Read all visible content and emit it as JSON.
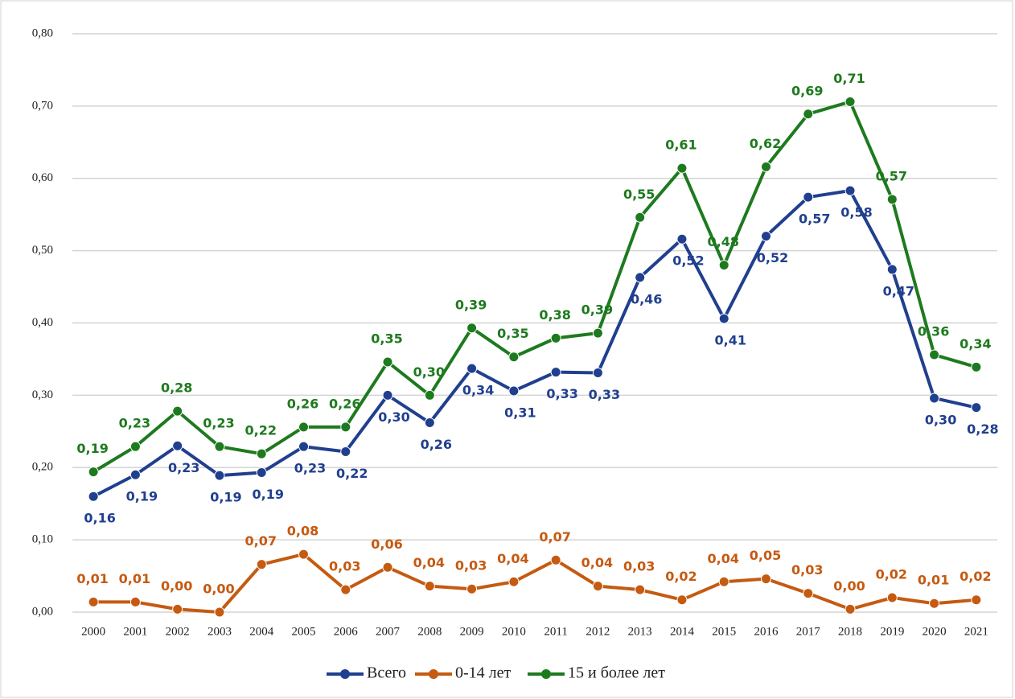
{
  "chart_data": {
    "type": "line",
    "categories": [
      "2000",
      "2001",
      "2002",
      "2003",
      "2004",
      "2005",
      "2006",
      "2007",
      "2008",
      "2009",
      "2010",
      "2011",
      "2012",
      "2013",
      "2014",
      "2015",
      "2016",
      "2017",
      "2018",
      "2019",
      "2020",
      "2021"
    ],
    "ylim": [
      0,
      0.8
    ],
    "yticks": [
      {
        "value": 0,
        "label": "0,00"
      },
      {
        "value": 0.1,
        "label": "0,10"
      },
      {
        "value": 0.2,
        "label": "0,20"
      },
      {
        "value": 0.3,
        "label": "0,30"
      },
      {
        "value": 0.4,
        "label": "0,40"
      },
      {
        "value": 0.5,
        "label": "0,50"
      },
      {
        "value": 0.6,
        "label": "0,60"
      },
      {
        "value": 0.7,
        "label": "0,70"
      },
      {
        "value": 0.8,
        "label": "0,80"
      }
    ],
    "grid": true,
    "legend": "bottom",
    "series": [
      {
        "name": "Всего",
        "color": "#203f8f",
        "values": [
          0.16,
          0.19,
          0.23,
          0.189,
          0.193,
          0.229,
          0.222,
          0.3,
          0.262,
          0.337,
          0.306,
          0.332,
          0.331,
          0.463,
          0.516,
          0.406,
          0.52,
          0.574,
          0.583,
          0.474,
          0.296,
          0.283
        ],
        "value_labels": [
          "0,16",
          "0,19",
          "0,23",
          "0,19",
          "0,19",
          "0,23",
          "0,22",
          "0,30",
          "0,26",
          "0,34",
          "0,31",
          "0,33",
          "0,33",
          "0,46",
          "0,52",
          "0,41",
          "0,52",
          "0,57",
          "0,58",
          "0,47",
          "0,30",
          "0,28"
        ]
      },
      {
        "name": "0-14 лет",
        "color": "#c55a11",
        "values": [
          0.014,
          0.014,
          0.004,
          0.0,
          0.066,
          0.08,
          0.031,
          0.062,
          0.036,
          0.032,
          0.042,
          0.072,
          0.036,
          0.031,
          0.017,
          0.042,
          0.046,
          0.026,
          0.004,
          0.02,
          0.012,
          0.017
        ],
        "value_labels": [
          "0,01",
          "0,01",
          "0,00",
          "0,00",
          "0,07",
          "0,08",
          "0,03",
          "0,06",
          "0,04",
          "0,03",
          "0,04",
          "0,07",
          "0,04",
          "0,03",
          "0,02",
          "0,04",
          "0,05",
          "0,03",
          "0,00",
          "0,02",
          "0,01",
          "0,02"
        ]
      },
      {
        "name": "15 и более лет",
        "color": "#1e7a1e",
        "values": [
          0.194,
          0.229,
          0.278,
          0.229,
          0.219,
          0.256,
          0.256,
          0.346,
          0.3,
          0.393,
          0.353,
          0.379,
          0.386,
          0.546,
          0.614,
          0.48,
          0.616,
          0.689,
          0.706,
          0.571,
          0.356,
          0.339
        ],
        "value_labels": [
          "0,19",
          "0,23",
          "0,28",
          "0,23",
          "0,22",
          "0,26",
          "0,26",
          "0,35",
          "0,30",
          "0,39",
          "0,35",
          "0,38",
          "0,39",
          "0,55",
          "0,61",
          "0,48",
          "0,62",
          "0,69",
          "0,71",
          "0,57",
          "0,36",
          "0,34"
        ]
      }
    ]
  }
}
